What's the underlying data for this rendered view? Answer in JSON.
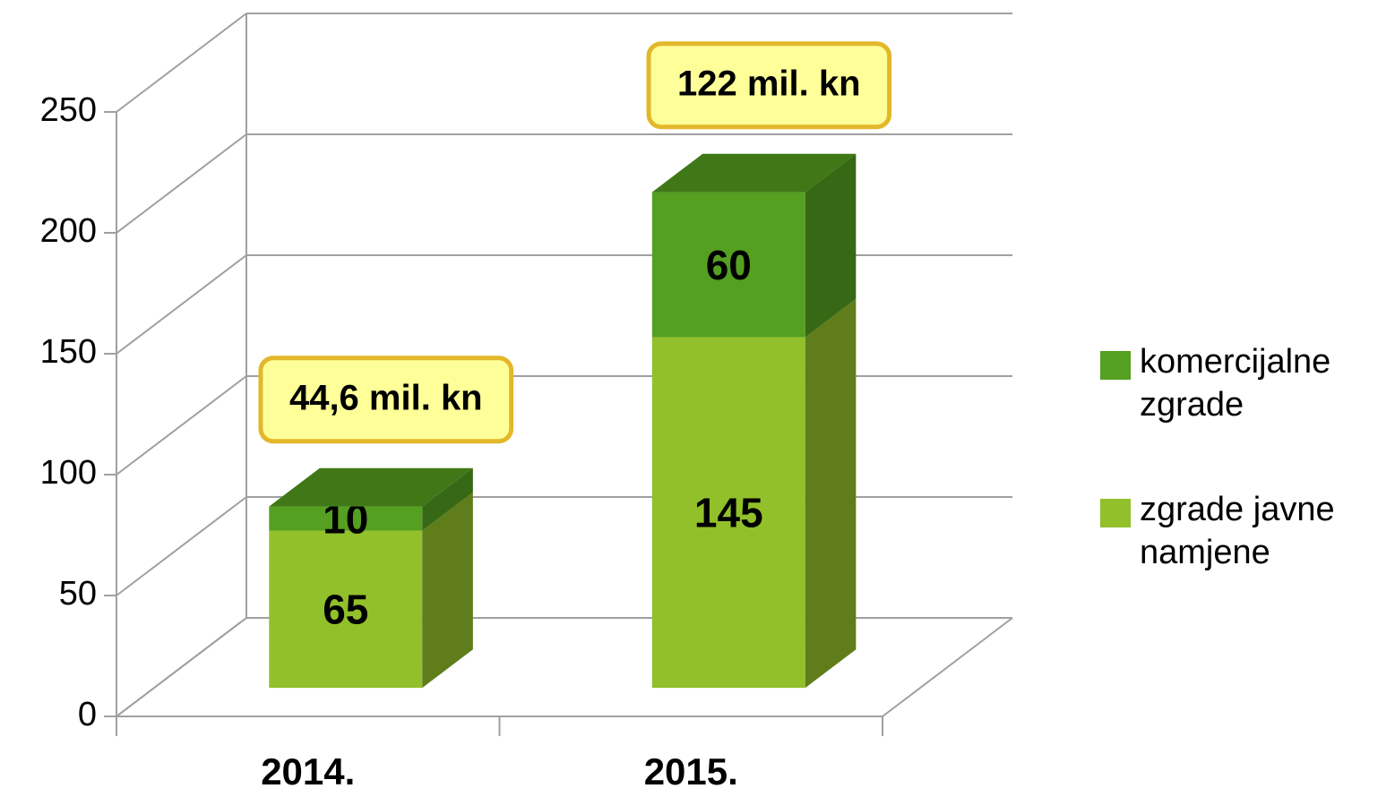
{
  "chart_data": {
    "type": "bar3d_stacked",
    "categories": [
      "2014.",
      "2015."
    ],
    "series": [
      {
        "name": "zgrade javne namjene",
        "color": "#92c02a",
        "values": [
          65,
          145
        ]
      },
      {
        "name": "komercijalne zgrade",
        "color": "#55a020",
        "values": [
          10,
          60
        ]
      }
    ],
    "annotations": [
      "44,6 mil. kn",
      "122 mil. kn"
    ],
    "ylim": [
      0,
      250
    ],
    "yticks": [
      0,
      50,
      100,
      150,
      200,
      250
    ],
    "grid": true,
    "legend": "right"
  }
}
